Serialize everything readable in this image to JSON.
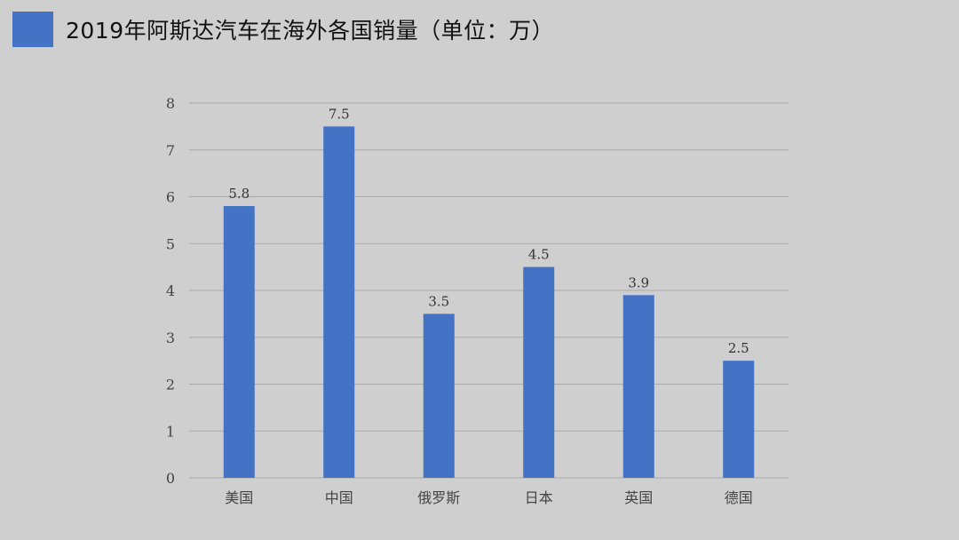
{
  "colors": {
    "background": "#cfcfcf",
    "bar": "#4472c4",
    "grid": "#a9a9a9"
  },
  "chart_data": {
    "type": "bar",
    "title": "2019年阿斯达汽车在海外各国销量（单位：万）",
    "categories": [
      "美国",
      "中国",
      "俄罗斯",
      "日本",
      "英国",
      "德国"
    ],
    "values": [
      5.8,
      7.5,
      3.5,
      4.5,
      3.9,
      2.5
    ],
    "data_labels": [
      "5.8",
      "7.5",
      "3.5",
      "4.5",
      "3.9",
      "2.5"
    ],
    "y_ticks": [
      "0",
      "1",
      "2",
      "3",
      "4",
      "5",
      "6",
      "7",
      "8"
    ],
    "ylim": [
      0,
      8
    ],
    "grid": true,
    "legend": "top-left"
  }
}
